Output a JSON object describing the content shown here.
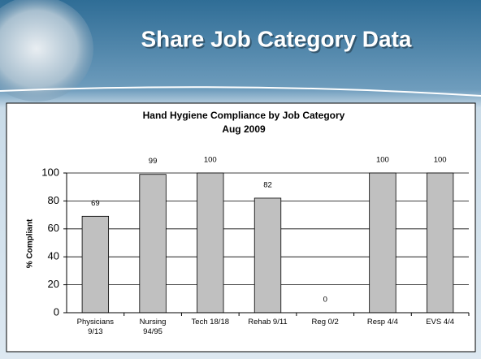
{
  "header": {
    "title": "Share Job Category Data"
  },
  "chart_data": {
    "type": "bar",
    "title": "Hand Hygiene Compliance by Job Category",
    "subtitle": "Aug 2009",
    "y_label": "% Compliant",
    "categories": [
      "Physicians 9/13",
      "Nursing 94/95",
      "Tech 18/18",
      "Rehab 9/11",
      "Reg 0/2",
      "Resp 4/4",
      "EVS 4/4"
    ],
    "values": [
      69,
      99,
      100,
      82,
      0,
      100,
      100
    ],
    "color": "#c0c0c0",
    "ylim": [
      0,
      100
    ],
    "yticks": [
      0,
      20,
      40,
      60,
      80,
      100
    ],
    "grid": true
  }
}
